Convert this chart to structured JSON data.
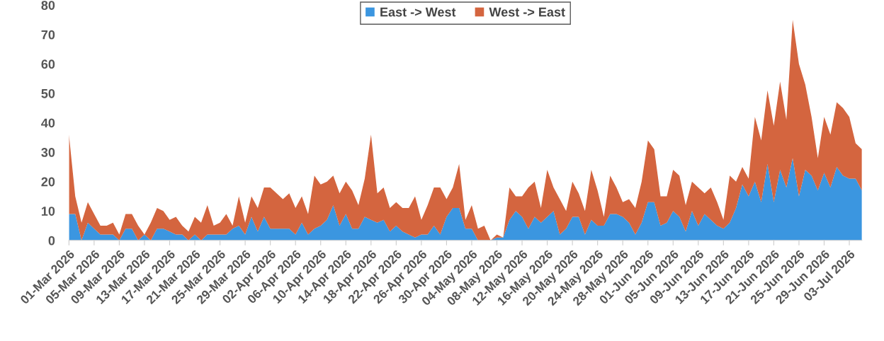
{
  "chart_data": {
    "type": "area",
    "stacked": true,
    "legend": "top",
    "grid": false,
    "x": [
      "2026-03-01",
      "2026-03-02",
      "2026-03-03",
      "2026-03-04",
      "2026-03-05",
      "2026-03-06",
      "2026-03-07",
      "2026-03-08",
      "2026-03-09",
      "2026-03-10",
      "2026-03-11",
      "2026-03-12",
      "2026-03-13",
      "2026-03-14",
      "2026-03-15",
      "2026-03-16",
      "2026-03-17",
      "2026-03-18",
      "2026-03-19",
      "2026-03-20",
      "2026-03-21",
      "2026-03-22",
      "2026-03-23",
      "2026-03-24",
      "2026-03-25",
      "2026-03-26",
      "2026-03-27",
      "2026-03-28",
      "2026-03-29",
      "2026-03-30",
      "2026-03-31",
      "2026-04-01",
      "2026-04-02",
      "2026-04-03",
      "2026-04-04",
      "2026-04-05",
      "2026-04-06",
      "2026-04-07",
      "2026-04-08",
      "2026-04-09",
      "2026-04-10",
      "2026-04-11",
      "2026-04-12",
      "2026-04-13",
      "2026-04-14",
      "2026-04-15",
      "2026-04-16",
      "2026-04-17",
      "2026-04-18",
      "2026-04-19",
      "2026-04-20",
      "2026-04-21",
      "2026-04-22",
      "2026-04-23",
      "2026-04-24",
      "2026-04-25",
      "2026-04-26",
      "2026-04-27",
      "2026-04-28",
      "2026-04-29",
      "2026-04-30",
      "2026-05-01",
      "2026-05-02",
      "2026-05-03",
      "2026-05-04",
      "2026-05-05",
      "2026-05-06",
      "2026-05-07",
      "2026-05-08",
      "2026-05-09",
      "2026-05-10",
      "2026-05-11",
      "2026-05-12",
      "2026-05-13",
      "2026-05-14",
      "2026-05-15",
      "2026-05-16",
      "2026-05-17",
      "2026-05-18",
      "2026-05-19",
      "2026-05-20",
      "2026-05-21",
      "2026-05-22",
      "2026-05-23",
      "2026-05-24",
      "2026-05-25",
      "2026-05-26",
      "2026-05-27",
      "2026-05-28",
      "2026-05-29",
      "2026-05-30",
      "2026-05-31",
      "2026-06-01",
      "2026-06-02",
      "2026-06-03",
      "2026-06-04",
      "2026-06-05",
      "2026-06-06",
      "2026-06-07",
      "2026-06-08",
      "2026-06-09",
      "2026-06-10",
      "2026-06-11",
      "2026-06-12",
      "2026-06-13",
      "2026-06-14",
      "2026-06-15",
      "2026-06-16",
      "2026-06-17",
      "2026-06-18",
      "2026-06-19",
      "2026-06-20",
      "2026-06-21",
      "2026-06-22",
      "2026-06-23",
      "2026-06-24",
      "2026-06-25",
      "2026-06-26",
      "2026-06-27",
      "2026-06-28",
      "2026-06-29",
      "2026-06-30",
      "2026-07-01",
      "2026-07-02",
      "2026-07-03",
      "2026-07-04",
      "2026-07-05"
    ],
    "series": [
      {
        "name": "East -> West",
        "color": "#3b96e0",
        "values": [
          9,
          9,
          0,
          6,
          4,
          2,
          2,
          2,
          0,
          4,
          4,
          0,
          2,
          0,
          4,
          4,
          3,
          2,
          2,
          0,
          2,
          0,
          2,
          2,
          2,
          2,
          4,
          5,
          2,
          8,
          3,
          8,
          4,
          4,
          4,
          4,
          2,
          6,
          2,
          4,
          5,
          7,
          12,
          5,
          9,
          4,
          4,
          8,
          7,
          6,
          7,
          3,
          5,
          3,
          2,
          1,
          2,
          2,
          5,
          2,
          8,
          11,
          11,
          4,
          4,
          0,
          0,
          0,
          1,
          1,
          7,
          10,
          8,
          4,
          8,
          6,
          8,
          10,
          2,
          4,
          8,
          8,
          2,
          7,
          5,
          5,
          9,
          9,
          8,
          6,
          2,
          6,
          13,
          13,
          5,
          6,
          10,
          8,
          3,
          10,
          5,
          9,
          7,
          5,
          4,
          6,
          11,
          19,
          15,
          20,
          13,
          26,
          13,
          24,
          18,
          28,
          15,
          24,
          22,
          17,
          23,
          18,
          25,
          22,
          21,
          21,
          17
        ]
      },
      {
        "name": "West -> East",
        "color": "#d4653f",
        "values": [
          27,
          6,
          6,
          7,
          5,
          3,
          3,
          4,
          2,
          5,
          5,
          5,
          0,
          6,
          7,
          6,
          4,
          6,
          3,
          3,
          6,
          6,
          10,
          3,
          4,
          7,
          1,
          10,
          4,
          7,
          8,
          10,
          14,
          12,
          10,
          12,
          9,
          9,
          7,
          18,
          14,
          13,
          10,
          11,
          11,
          13,
          8,
          13,
          29,
          10,
          11,
          8,
          8,
          8,
          9,
          14,
          5,
          10,
          13,
          16,
          6,
          7,
          15,
          3,
          8,
          4,
          5,
          0,
          1,
          0,
          11,
          5,
          7,
          14,
          12,
          5,
          16,
          8,
          12,
          6,
          12,
          8,
          8,
          17,
          12,
          3,
          13,
          9,
          5,
          8,
          9,
          14,
          21,
          18,
          10,
          9,
          14,
          14,
          9,
          10,
          13,
          7,
          11,
          8,
          3,
          16,
          9,
          6,
          6,
          22,
          21,
          25,
          26,
          30,
          23,
          47,
          45,
          29,
          20,
          11,
          19,
          18,
          22,
          23,
          21,
          12,
          14
        ]
      }
    ],
    "xlim": [
      "2026-03-01",
      "2026-07-05"
    ],
    "xticks": [
      {
        "value": "2026-03-01",
        "label": "01-Mar 2026"
      },
      {
        "value": "2026-03-05",
        "label": "05-Mar 2026"
      },
      {
        "value": "2026-03-09",
        "label": "09-Mar 2026"
      },
      {
        "value": "2026-03-13",
        "label": "13-Mar 2026"
      },
      {
        "value": "2026-03-17",
        "label": "17-Mar 2026"
      },
      {
        "value": "2026-03-21",
        "label": "21-Mar 2026"
      },
      {
        "value": "2026-03-25",
        "label": "25-Mar 2026"
      },
      {
        "value": "2026-03-29",
        "label": "29-Mar 2026"
      },
      {
        "value": "2026-04-02",
        "label": "02-Apr 2026"
      },
      {
        "value": "2026-04-06",
        "label": "06-Apr 2026"
      },
      {
        "value": "2026-04-10",
        "label": "10-Apr 2026"
      },
      {
        "value": "2026-04-14",
        "label": "14-Apr 2026"
      },
      {
        "value": "2026-04-18",
        "label": "18-Apr 2026"
      },
      {
        "value": "2026-04-22",
        "label": "22-Apr 2026"
      },
      {
        "value": "2026-04-26",
        "label": "26-Apr 2026"
      },
      {
        "value": "2026-04-30",
        "label": "30-Apr 2026"
      },
      {
        "value": "2026-05-04",
        "label": "04-May 2026"
      },
      {
        "value": "2026-05-08",
        "label": "08-May 2026"
      },
      {
        "value": "2026-05-12",
        "label": "12-May 2026"
      },
      {
        "value": "2026-05-16",
        "label": "16-May 2026"
      },
      {
        "value": "2026-05-20",
        "label": "20-May 2026"
      },
      {
        "value": "2026-05-24",
        "label": "24-May 2026"
      },
      {
        "value": "2026-05-28",
        "label": "28-May 2026"
      },
      {
        "value": "2026-06-01",
        "label": "01-Jun 2026"
      },
      {
        "value": "2026-06-05",
        "label": "05-Jun 2026"
      },
      {
        "value": "2026-06-09",
        "label": "09-Jun 2026"
      },
      {
        "value": "2026-06-13",
        "label": "13-Jun 2026"
      },
      {
        "value": "2026-06-17",
        "label": "17-Jun 2026"
      },
      {
        "value": "2026-06-21",
        "label": "21-Jun 2026"
      },
      {
        "value": "2026-06-25",
        "label": "25-Jun 2026"
      },
      {
        "value": "2026-06-29",
        "label": "29-Jun 2026"
      },
      {
        "value": "2026-07-03",
        "label": "03-Jul 2026"
      }
    ],
    "ylim": [
      0,
      80
    ],
    "yticks": [
      0,
      10,
      20,
      30,
      40,
      50,
      60,
      70,
      80
    ]
  }
}
